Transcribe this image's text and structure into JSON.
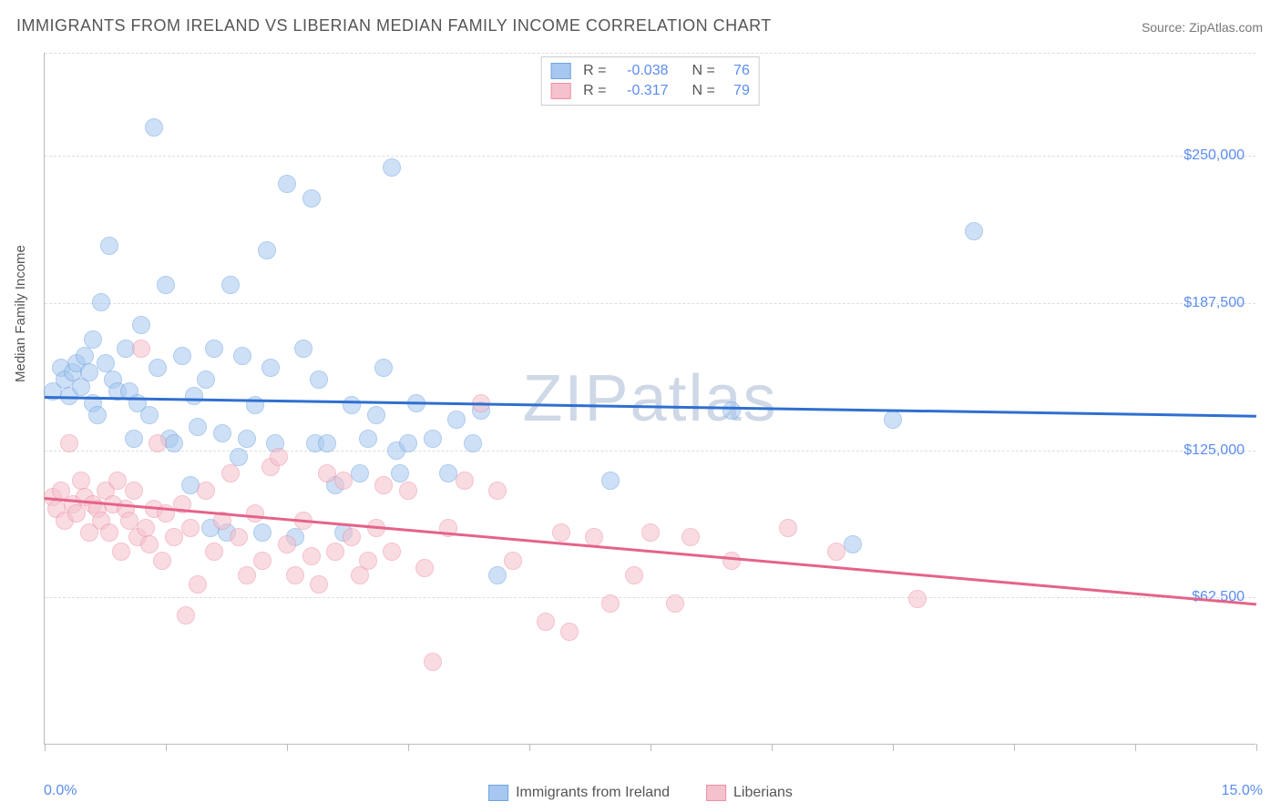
{
  "title": "IMMIGRANTS FROM IRELAND VS LIBERIAN MEDIAN FAMILY INCOME CORRELATION CHART",
  "source": "Source: ZipAtlas.com",
  "watermark": "ZIPatlas",
  "ylabel": "Median Family Income",
  "chart": {
    "type": "scatter",
    "background_color": "#ffffff",
    "grid_color": "#dddddd",
    "axis_color": "#bbbbbb",
    "xlim": [
      0,
      15
    ],
    "ylim": [
      0,
      293750
    ],
    "xtick_positions": [
      0,
      1.5,
      3.0,
      4.5,
      6.0,
      7.5,
      9.0,
      10.5,
      12.0,
      13.5,
      15.0
    ],
    "xtick_labels_shown": {
      "first": "0.0%",
      "last": "15.0%"
    },
    "ygrid_values": [
      62500,
      125000,
      187500,
      250000,
      293750
    ],
    "ytick_labels": [
      "$62,500",
      "$125,000",
      "$187,500",
      "$250,000"
    ],
    "ytick_values": [
      62500,
      125000,
      187500,
      250000
    ],
    "label_color": "#5b8def",
    "marker_radius": 10,
    "marker_opacity": 0.55,
    "marker_border_width": 1.5,
    "trendline_width": 2.5
  },
  "series": [
    {
      "name": "Immigrants from Ireland",
      "fill_color": "#a7c7f0",
      "border_color": "#6ea3e0",
      "line_color": "#2f6fd0",
      "R": "-0.038",
      "N": "76",
      "trend": {
        "y_at_x0": 148000,
        "y_at_x15": 140000
      },
      "points": [
        [
          0.1,
          150000
        ],
        [
          0.2,
          160000
        ],
        [
          0.25,
          155000
        ],
        [
          0.3,
          148000
        ],
        [
          0.35,
          158000
        ],
        [
          0.4,
          162000
        ],
        [
          0.45,
          152000
        ],
        [
          0.5,
          165000
        ],
        [
          0.55,
          158000
        ],
        [
          0.6,
          145000
        ],
        [
          0.6,
          172000
        ],
        [
          0.65,
          140000
        ],
        [
          0.7,
          188000
        ],
        [
          0.75,
          162000
        ],
        [
          0.8,
          212000
        ],
        [
          0.85,
          155000
        ],
        [
          0.9,
          150000
        ],
        [
          1.0,
          168000
        ],
        [
          1.05,
          150000
        ],
        [
          1.1,
          130000
        ],
        [
          1.15,
          145000
        ],
        [
          1.2,
          178000
        ],
        [
          1.3,
          140000
        ],
        [
          1.35,
          262000
        ],
        [
          1.4,
          160000
        ],
        [
          1.5,
          195000
        ],
        [
          1.55,
          130000
        ],
        [
          1.6,
          128000
        ],
        [
          1.7,
          165000
        ],
        [
          1.8,
          110000
        ],
        [
          1.85,
          148000
        ],
        [
          1.9,
          135000
        ],
        [
          2.0,
          155000
        ],
        [
          2.05,
          92000
        ],
        [
          2.1,
          168000
        ],
        [
          2.2,
          132000
        ],
        [
          2.25,
          90000
        ],
        [
          2.3,
          195000
        ],
        [
          2.4,
          122000
        ],
        [
          2.45,
          165000
        ],
        [
          2.5,
          130000
        ],
        [
          2.6,
          144000
        ],
        [
          2.7,
          90000
        ],
        [
          2.75,
          210000
        ],
        [
          2.8,
          160000
        ],
        [
          2.85,
          128000
        ],
        [
          3.0,
          238000
        ],
        [
          3.1,
          88000
        ],
        [
          3.2,
          168000
        ],
        [
          3.3,
          232000
        ],
        [
          3.35,
          128000
        ],
        [
          3.4,
          155000
        ],
        [
          3.5,
          128000
        ],
        [
          3.6,
          110000
        ],
        [
          3.7,
          90000
        ],
        [
          3.8,
          144000
        ],
        [
          3.9,
          115000
        ],
        [
          4.0,
          130000
        ],
        [
          4.1,
          140000
        ],
        [
          4.2,
          160000
        ],
        [
          4.3,
          245000
        ],
        [
          4.35,
          125000
        ],
        [
          4.4,
          115000
        ],
        [
          4.5,
          128000
        ],
        [
          4.6,
          145000
        ],
        [
          4.8,
          130000
        ],
        [
          5.0,
          115000
        ],
        [
          5.1,
          138000
        ],
        [
          5.3,
          128000
        ],
        [
          5.4,
          142000
        ],
        [
          5.6,
          72000
        ],
        [
          7.0,
          112000
        ],
        [
          8.5,
          142000
        ],
        [
          10.0,
          85000
        ],
        [
          10.5,
          138000
        ],
        [
          11.5,
          218000
        ]
      ]
    },
    {
      "name": "Liberians",
      "fill_color": "#f5c1cc",
      "border_color": "#ec8fa4",
      "line_color": "#e56389",
      "R": "-0.317",
      "N": "79",
      "trend": {
        "y_at_x0": 105000,
        "y_at_x15": 60000
      },
      "points": [
        [
          0.1,
          105000
        ],
        [
          0.15,
          100000
        ],
        [
          0.2,
          108000
        ],
        [
          0.25,
          95000
        ],
        [
          0.3,
          128000
        ],
        [
          0.35,
          102000
        ],
        [
          0.4,
          98000
        ],
        [
          0.45,
          112000
        ],
        [
          0.5,
          105000
        ],
        [
          0.55,
          90000
        ],
        [
          0.6,
          102000
        ],
        [
          0.65,
          100000
        ],
        [
          0.7,
          95000
        ],
        [
          0.75,
          108000
        ],
        [
          0.8,
          90000
        ],
        [
          0.85,
          102000
        ],
        [
          0.9,
          112000
        ],
        [
          0.95,
          82000
        ],
        [
          1.0,
          100000
        ],
        [
          1.05,
          95000
        ],
        [
          1.1,
          108000
        ],
        [
          1.15,
          88000
        ],
        [
          1.2,
          168000
        ],
        [
          1.25,
          92000
        ],
        [
          1.3,
          85000
        ],
        [
          1.35,
          100000
        ],
        [
          1.4,
          128000
        ],
        [
          1.45,
          78000
        ],
        [
          1.5,
          98000
        ],
        [
          1.6,
          88000
        ],
        [
          1.7,
          102000
        ],
        [
          1.75,
          55000
        ],
        [
          1.8,
          92000
        ],
        [
          1.9,
          68000
        ],
        [
          2.0,
          108000
        ],
        [
          2.1,
          82000
        ],
        [
          2.2,
          95000
        ],
        [
          2.3,
          115000
        ],
        [
          2.4,
          88000
        ],
        [
          2.5,
          72000
        ],
        [
          2.6,
          98000
        ],
        [
          2.7,
          78000
        ],
        [
          2.8,
          118000
        ],
        [
          2.9,
          122000
        ],
        [
          3.0,
          85000
        ],
        [
          3.1,
          72000
        ],
        [
          3.2,
          95000
        ],
        [
          3.3,
          80000
        ],
        [
          3.4,
          68000
        ],
        [
          3.5,
          115000
        ],
        [
          3.6,
          82000
        ],
        [
          3.7,
          112000
        ],
        [
          3.8,
          88000
        ],
        [
          3.9,
          72000
        ],
        [
          4.0,
          78000
        ],
        [
          4.1,
          92000
        ],
        [
          4.2,
          110000
        ],
        [
          4.3,
          82000
        ],
        [
          4.5,
          108000
        ],
        [
          4.7,
          75000
        ],
        [
          4.8,
          35000
        ],
        [
          5.0,
          92000
        ],
        [
          5.2,
          112000
        ],
        [
          5.4,
          145000
        ],
        [
          5.6,
          108000
        ],
        [
          5.8,
          78000
        ],
        [
          6.2,
          52000
        ],
        [
          6.4,
          90000
        ],
        [
          6.5,
          48000
        ],
        [
          6.8,
          88000
        ],
        [
          7.0,
          60000
        ],
        [
          7.3,
          72000
        ],
        [
          7.5,
          90000
        ],
        [
          7.8,
          60000
        ],
        [
          8.0,
          88000
        ],
        [
          8.5,
          78000
        ],
        [
          9.2,
          92000
        ],
        [
          9.8,
          82000
        ],
        [
          10.8,
          62000
        ]
      ]
    }
  ],
  "legend": {
    "top": {
      "r_label": "R =",
      "n_label": "N ="
    },
    "bottom": [
      "Immigrants from Ireland",
      "Liberians"
    ]
  }
}
